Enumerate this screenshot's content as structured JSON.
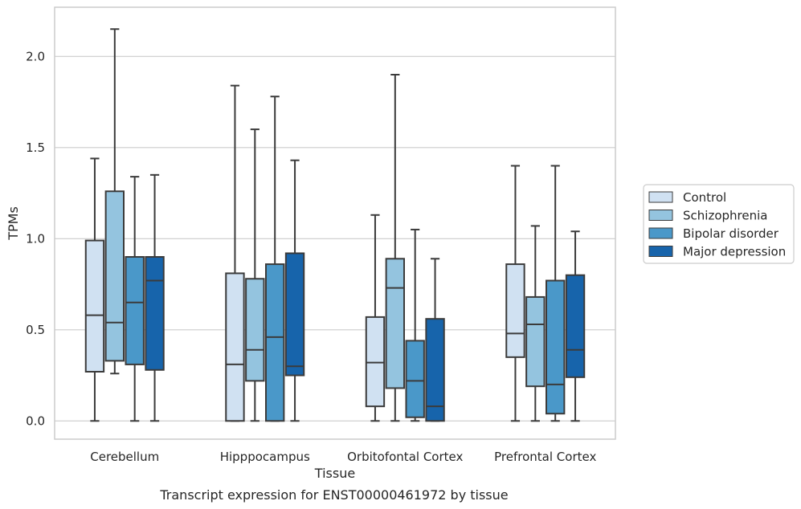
{
  "caption": "Transcript expression for ENST00000461972 by tissue",
  "colors": {
    "Control": "#d0e1f2",
    "Schizophrenia": "#94c4df",
    "Bipolar disorder": "#4a98c9",
    "Major depression": "#1764ab",
    "grid": "#cccccc",
    "frame": "#cccccc",
    "box_edge": "#3b3b3b"
  },
  "chart_data": {
    "type": "box",
    "title": "",
    "xlabel": "Tissue",
    "ylabel": "TPMs",
    "ylim": [
      -0.1,
      2.27
    ],
    "yticks": [
      0.0,
      0.5,
      1.0,
      1.5,
      2.0
    ],
    "ytick_labels": [
      "0.0",
      "0.5",
      "1.0",
      "1.5",
      "2.0"
    ],
    "grid": true,
    "legend_position": "right",
    "categories": [
      "Cerebellum",
      "Hipppocampus",
      "Orbitofontal Cortex",
      "Prefrontal Cortex"
    ],
    "series": [
      {
        "name": "Control",
        "boxes": [
          {
            "whislo": 0.0,
            "q1": 0.27,
            "med": 0.58,
            "q3": 0.99,
            "whishi": 1.44
          },
          {
            "whislo": 0.0,
            "q1": 0.0,
            "med": 0.31,
            "q3": 0.81,
            "whishi": 1.84
          },
          {
            "whislo": 0.0,
            "q1": 0.08,
            "med": 0.32,
            "q3": 0.57,
            "whishi": 1.13
          },
          {
            "whislo": 0.0,
            "q1": 0.35,
            "med": 0.48,
            "q3": 0.86,
            "whishi": 1.4
          }
        ]
      },
      {
        "name": "Schizophrenia",
        "boxes": [
          {
            "whislo": 0.26,
            "q1": 0.33,
            "med": 0.54,
            "q3": 1.26,
            "whishi": 2.15
          },
          {
            "whislo": 0.0,
            "q1": 0.22,
            "med": 0.39,
            "q3": 0.78,
            "whishi": 1.6
          },
          {
            "whislo": 0.0,
            "q1": 0.18,
            "med": 0.73,
            "q3": 0.89,
            "whishi": 1.9
          },
          {
            "whislo": 0.0,
            "q1": 0.19,
            "med": 0.53,
            "q3": 0.68,
            "whishi": 1.07
          }
        ]
      },
      {
        "name": "Bipolar disorder",
        "boxes": [
          {
            "whislo": 0.0,
            "q1": 0.31,
            "med": 0.65,
            "q3": 0.9,
            "whishi": 1.34
          },
          {
            "whislo": 0.0,
            "q1": 0.0,
            "med": 0.46,
            "q3": 0.86,
            "whishi": 1.78
          },
          {
            "whislo": 0.0,
            "q1": 0.02,
            "med": 0.22,
            "q3": 0.44,
            "whishi": 1.05
          },
          {
            "whislo": 0.0,
            "q1": 0.04,
            "med": 0.2,
            "q3": 0.77,
            "whishi": 1.4
          }
        ]
      },
      {
        "name": "Major depression",
        "boxes": [
          {
            "whislo": 0.0,
            "q1": 0.28,
            "med": 0.77,
            "q3": 0.9,
            "whishi": 1.35
          },
          {
            "whislo": 0.0,
            "q1": 0.25,
            "med": 0.3,
            "q3": 0.92,
            "whishi": 1.43
          },
          {
            "whislo": 0.0,
            "q1": 0.0,
            "med": 0.08,
            "q3": 0.56,
            "whishi": 0.89
          },
          {
            "whislo": 0.0,
            "q1": 0.24,
            "med": 0.39,
            "q3": 0.8,
            "whishi": 1.04
          }
        ]
      }
    ]
  }
}
